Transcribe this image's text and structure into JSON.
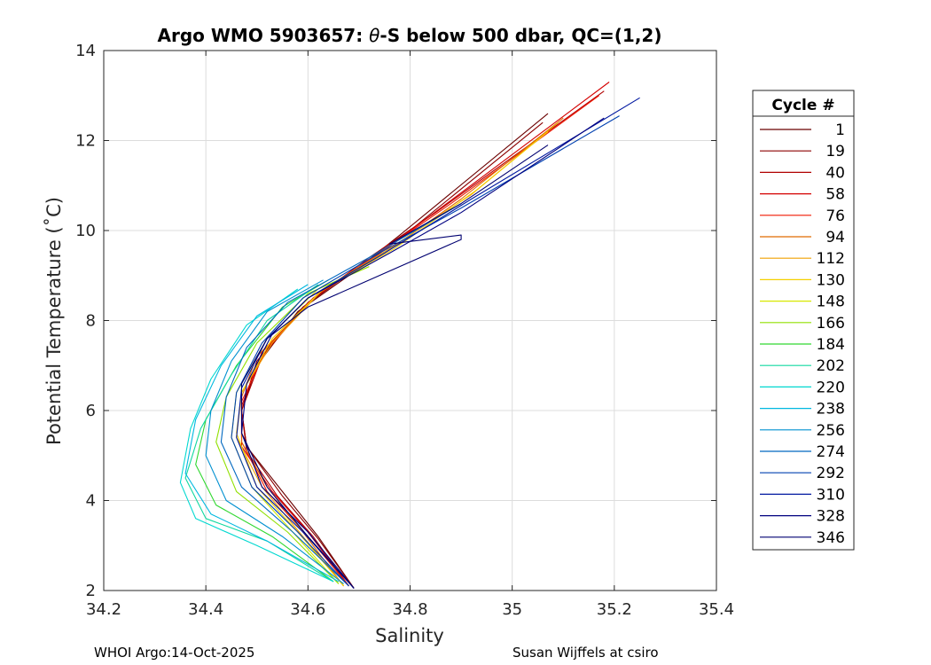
{
  "chart_data": {
    "type": "line",
    "title_prefix": "Argo WMO 5903657: ",
    "title_theta": "θ",
    "title_suffix": "-S below 500 dbar,  QC=(1,2)",
    "xlabel": "Salinity",
    "ylabel": "Potential Temperature (˚C)",
    "xlim": [
      34.2,
      35.4
    ],
    "ylim": [
      2,
      14
    ],
    "xticks": [
      34.2,
      34.4,
      34.6,
      34.8,
      35,
      35.2,
      35.4
    ],
    "xtick_labels": [
      "34.2",
      "34.4",
      "34.6",
      "34.8",
      "35",
      "35.2",
      "35.4"
    ],
    "yticks": [
      2,
      4,
      6,
      8,
      10,
      12,
      14
    ],
    "ytick_labels": [
      "2",
      "4",
      "6",
      "8",
      "10",
      "12",
      "14"
    ],
    "grid": true,
    "legend_title": "Cycle #",
    "legend_position": "outside-right",
    "series": [
      {
        "name": "1",
        "color": "#6b0000",
        "points": [
          [
            34.69,
            2.05
          ],
          [
            34.62,
            3.2
          ],
          [
            34.55,
            4.2
          ],
          [
            34.48,
            5.2
          ],
          [
            34.47,
            6.0
          ],
          [
            34.5,
            7.0
          ],
          [
            34.58,
            8.2
          ],
          [
            34.68,
            9.0
          ],
          [
            34.78,
            9.9
          ],
          [
            35.07,
            12.6
          ]
        ]
      },
      {
        "name": "19",
        "color": "#8c0000",
        "points": [
          [
            34.69,
            2.05
          ],
          [
            34.62,
            3.15
          ],
          [
            34.55,
            4.1
          ],
          [
            34.48,
            5.2
          ],
          [
            34.47,
            6.0
          ],
          [
            34.5,
            7.1
          ],
          [
            34.59,
            8.3
          ],
          [
            34.7,
            9.2
          ],
          [
            34.8,
            10.0
          ],
          [
            35.06,
            12.4
          ]
        ]
      },
      {
        "name": "40",
        "color": "#b00000",
        "points": [
          [
            34.68,
            2.1
          ],
          [
            34.61,
            3.2
          ],
          [
            34.54,
            4.1
          ],
          [
            34.48,
            5.1
          ],
          [
            34.47,
            6.0
          ],
          [
            34.51,
            7.2
          ],
          [
            34.6,
            8.4
          ],
          [
            34.72,
            9.4
          ],
          [
            34.85,
            10.4
          ],
          [
            35.18,
            13.1
          ]
        ]
      },
      {
        "name": "58",
        "color": "#d40000",
        "points": [
          [
            34.68,
            2.1
          ],
          [
            34.6,
            3.3
          ],
          [
            34.53,
            4.2
          ],
          [
            34.47,
            5.2
          ],
          [
            34.47,
            6.1
          ],
          [
            34.51,
            7.3
          ],
          [
            34.61,
            8.5
          ],
          [
            34.73,
            9.4
          ],
          [
            34.86,
            10.5
          ],
          [
            35.19,
            13.3
          ]
        ]
      },
      {
        "name": "76",
        "color": "#f01800",
        "points": [
          [
            34.68,
            2.1
          ],
          [
            34.6,
            3.2
          ],
          [
            34.52,
            4.2
          ],
          [
            34.47,
            5.3
          ],
          [
            34.47,
            6.2
          ],
          [
            34.52,
            7.4
          ],
          [
            34.62,
            8.6
          ],
          [
            34.74,
            9.5
          ],
          [
            34.88,
            10.6
          ],
          [
            35.17,
            13.0
          ]
        ]
      },
      {
        "name": "94",
        "color": "#e06a00",
        "points": [
          [
            34.67,
            2.1
          ],
          [
            34.59,
            3.3
          ],
          [
            34.52,
            4.3
          ],
          [
            34.47,
            5.3
          ],
          [
            34.47,
            6.3
          ],
          [
            34.5,
            7.2
          ],
          [
            34.62,
            8.6
          ],
          [
            34.75,
            9.5
          ],
          [
            34.9,
            10.7
          ],
          [
            35.1,
            12.5
          ]
        ]
      },
      {
        "name": "112",
        "color": "#f0a000",
        "points": [
          [
            34.67,
            2.1
          ],
          [
            34.59,
            3.2
          ],
          [
            34.51,
            4.3
          ],
          [
            34.46,
            5.4
          ],
          [
            34.47,
            6.4
          ],
          [
            34.53,
            7.5
          ],
          [
            34.63,
            8.7
          ],
          [
            34.76,
            9.6
          ],
          [
            34.92,
            10.8
          ],
          [
            35.09,
            12.4
          ]
        ]
      },
      {
        "name": "130",
        "color": "#f5d000",
        "points": [
          [
            34.67,
            2.1
          ],
          [
            34.58,
            3.3
          ],
          [
            34.5,
            4.3
          ],
          [
            34.46,
            5.5
          ],
          [
            34.47,
            6.4
          ],
          [
            34.53,
            7.6
          ],
          [
            34.63,
            8.7
          ],
          [
            34.77,
            9.6
          ],
          [
            34.93,
            10.9
          ],
          [
            35.07,
            12.2
          ]
        ]
      },
      {
        "name": "148",
        "color": "#d8e800",
        "points": [
          [
            34.66,
            2.15
          ],
          [
            34.57,
            3.3
          ],
          [
            34.49,
            4.3
          ],
          [
            34.45,
            5.4
          ],
          [
            34.46,
            6.4
          ],
          [
            34.52,
            7.6
          ],
          [
            34.62,
            8.7
          ],
          [
            34.72,
            9.2
          ]
        ]
      },
      {
        "name": "166",
        "color": "#90e000",
        "points": [
          [
            34.66,
            2.15
          ],
          [
            34.56,
            3.3
          ],
          [
            34.46,
            4.2
          ],
          [
            34.42,
            5.3
          ],
          [
            34.44,
            6.3
          ],
          [
            34.5,
            7.5
          ],
          [
            34.6,
            8.6
          ],
          [
            34.72,
            9.2
          ]
        ]
      },
      {
        "name": "184",
        "color": "#30d830",
        "points": [
          [
            34.65,
            2.2
          ],
          [
            34.53,
            3.2
          ],
          [
            34.42,
            3.9
          ],
          [
            34.38,
            4.8
          ],
          [
            34.4,
            5.8
          ],
          [
            34.46,
            7.0
          ],
          [
            34.55,
            8.3
          ],
          [
            34.64,
            8.9
          ]
        ]
      },
      {
        "name": "202",
        "color": "#10d8a0",
        "points": [
          [
            34.65,
            2.2
          ],
          [
            34.52,
            3.1
          ],
          [
            34.4,
            3.6
          ],
          [
            34.36,
            4.5
          ],
          [
            34.39,
            5.6
          ],
          [
            34.45,
            6.8
          ],
          [
            34.52,
            8.0
          ],
          [
            34.62,
            8.8
          ]
        ]
      },
      {
        "name": "220",
        "color": "#00d8d0",
        "points": [
          [
            34.65,
            2.2
          ],
          [
            34.5,
            3.0
          ],
          [
            34.38,
            3.6
          ],
          [
            34.35,
            4.4
          ],
          [
            34.37,
            5.6
          ],
          [
            34.41,
            6.7
          ],
          [
            34.48,
            7.9
          ],
          [
            34.58,
            8.7
          ]
        ]
      },
      {
        "name": "238",
        "color": "#00b8e0",
        "points": [
          [
            34.66,
            2.2
          ],
          [
            34.52,
            3.1
          ],
          [
            34.41,
            3.7
          ],
          [
            34.36,
            4.6
          ],
          [
            34.38,
            5.8
          ],
          [
            34.43,
            7.0
          ],
          [
            34.5,
            8.1
          ],
          [
            34.6,
            8.8
          ]
        ]
      },
      {
        "name": "256",
        "color": "#0090d0",
        "points": [
          [
            34.67,
            2.15
          ],
          [
            34.55,
            3.2
          ],
          [
            34.44,
            4.0
          ],
          [
            34.4,
            5.0
          ],
          [
            34.41,
            6.0
          ],
          [
            34.45,
            7.1
          ],
          [
            34.52,
            8.2
          ],
          [
            34.63,
            8.9
          ]
        ]
      },
      {
        "name": "274",
        "color": "#0068c0",
        "points": [
          [
            34.68,
            2.1
          ],
          [
            34.57,
            3.3
          ],
          [
            34.47,
            4.3
          ],
          [
            34.43,
            5.3
          ],
          [
            34.44,
            6.3
          ],
          [
            34.48,
            7.4
          ],
          [
            34.56,
            8.4
          ],
          [
            34.72,
            9.4
          ],
          [
            34.9,
            10.6
          ]
        ]
      },
      {
        "name": "292",
        "color": "#0040b0",
        "points": [
          [
            34.68,
            2.1
          ],
          [
            34.58,
            3.3
          ],
          [
            34.49,
            4.3
          ],
          [
            34.45,
            5.4
          ],
          [
            34.46,
            6.4
          ],
          [
            34.51,
            7.5
          ],
          [
            34.59,
            8.5
          ],
          [
            34.74,
            9.5
          ],
          [
            34.9,
            10.5
          ],
          [
            35.21,
            12.55
          ]
        ]
      },
      {
        "name": "310",
        "color": "#0018a0",
        "points": [
          [
            34.69,
            2.05
          ],
          [
            34.59,
            3.3
          ],
          [
            34.5,
            4.3
          ],
          [
            34.46,
            5.4
          ],
          [
            34.47,
            6.5
          ],
          [
            34.52,
            7.6
          ],
          [
            34.6,
            8.5
          ],
          [
            34.75,
            9.5
          ],
          [
            34.92,
            10.7
          ],
          [
            35.25,
            12.95
          ]
        ]
      },
      {
        "name": "328",
        "color": "#000080",
        "points": [
          [
            34.69,
            2.05
          ],
          [
            34.6,
            3.3
          ],
          [
            34.51,
            4.3
          ],
          [
            34.47,
            5.5
          ],
          [
            34.48,
            6.6
          ],
          [
            34.53,
            7.7
          ],
          [
            34.6,
            8.5
          ],
          [
            34.76,
            9.5
          ],
          [
            34.9,
            10.4
          ],
          [
            35.18,
            12.5
          ]
        ]
      },
      {
        "name": "346",
        "color": "#000070",
        "points": [
          [
            34.69,
            2.05
          ],
          [
            34.6,
            3.2
          ],
          [
            34.52,
            4.3
          ],
          [
            34.47,
            5.5
          ],
          [
            34.47,
            6.6
          ],
          [
            34.52,
            7.6
          ],
          [
            34.6,
            8.3
          ],
          [
            34.7,
            8.8
          ],
          [
            34.9,
            9.8
          ],
          [
            34.9,
            9.9
          ],
          [
            34.76,
            9.7
          ],
          [
            34.9,
            10.6
          ],
          [
            35.07,
            11.9
          ]
        ]
      }
    ]
  },
  "footer": {
    "left": "WHOI Argo:14-Oct-2025",
    "right": "Susan Wijffels at csiro"
  }
}
